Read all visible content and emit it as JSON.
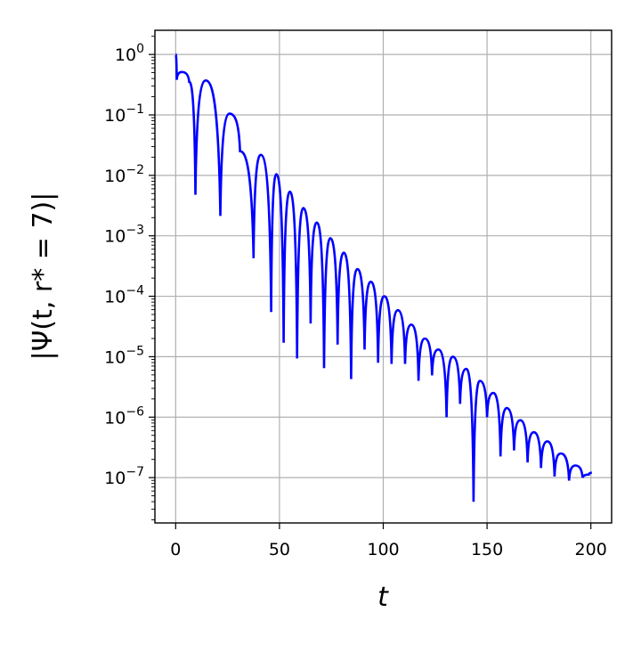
{
  "chart_data": {
    "type": "line",
    "title": "",
    "xlabel": "t",
    "ylabel": "|Ψ(t, r* = 7)|",
    "xlim": [
      -10,
      210
    ],
    "ylim_exp": [
      -7.75,
      0.4
    ],
    "yscale": "log",
    "grid": true,
    "line_color": "#0000ff",
    "x_ticks": [
      0,
      50,
      100,
      150,
      200
    ],
    "x_tick_labels": [
      "0",
      "50",
      "100",
      "150",
      "200"
    ],
    "y_ticks_exp": [
      0,
      -1,
      -2,
      -3,
      -4,
      -5,
      -6,
      -7
    ],
    "y_tick_labels": [
      {
        "base": "10",
        "exp": "0"
      },
      {
        "base": "10",
        "exp": "−1"
      },
      {
        "base": "10",
        "exp": "−2"
      },
      {
        "base": "10",
        "exp": "−3"
      },
      {
        "base": "10",
        "exp": "−4"
      },
      {
        "base": "10",
        "exp": "−5"
      },
      {
        "base": "10",
        "exp": "−6"
      },
      {
        "base": "10",
        "exp": "−7"
      }
    ],
    "series": [
      {
        "x": [
          0,
          0.5,
          3.0,
          6.5,
          9.5,
          14.5,
          21.5,
          26.0,
          31.0,
          37.5,
          41.0,
          46.0,
          48.5,
          52.0,
          55.0,
          58.5,
          61.5,
          65.0,
          68.0,
          71.5,
          74.5,
          78.0,
          81.0,
          84.5,
          87.5,
          91.0,
          94.0,
          97.5,
          100.5,
          104.0,
          107.0,
          110.5,
          113.5,
          117.0,
          120.0,
          123.5,
          126.5,
          130.5,
          133.5,
          137.0,
          140.0,
          143.5,
          146.5,
          150.0,
          153.0,
          156.5,
          159.5,
          163.0,
          166.0,
          169.5,
          172.5,
          176.0,
          179.0,
          182.5,
          185.5,
          189.5,
          192.5,
          196.0,
          199.0,
          200.5
        ],
        "log10_y": [
          0.0,
          -0.42,
          -0.29,
          -0.45,
          -2.32,
          -0.43,
          -2.67,
          -0.98,
          -1.6,
          -3.37,
          -1.66,
          -4.26,
          -1.98,
          -4.77,
          -2.27,
          -5.03,
          -2.54,
          -4.45,
          -2.78,
          -5.19,
          -3.04,
          -4.8,
          -3.28,
          -5.37,
          -3.55,
          -4.88,
          -3.76,
          -5.1,
          -4.0,
          -5.12,
          -4.23,
          -5.12,
          -4.47,
          -5.4,
          -4.7,
          -5.31,
          -4.88,
          -6.0,
          -5.0,
          -5.78,
          -5.2,
          -7.4,
          -5.4,
          -6.0,
          -5.6,
          -6.65,
          -5.85,
          -6.55,
          -6.05,
          -6.75,
          -6.25,
          -6.84,
          -6.4,
          -6.98,
          -6.6,
          -7.05,
          -6.8,
          -7.0,
          -6.95,
          -6.92
        ]
      }
    ]
  }
}
